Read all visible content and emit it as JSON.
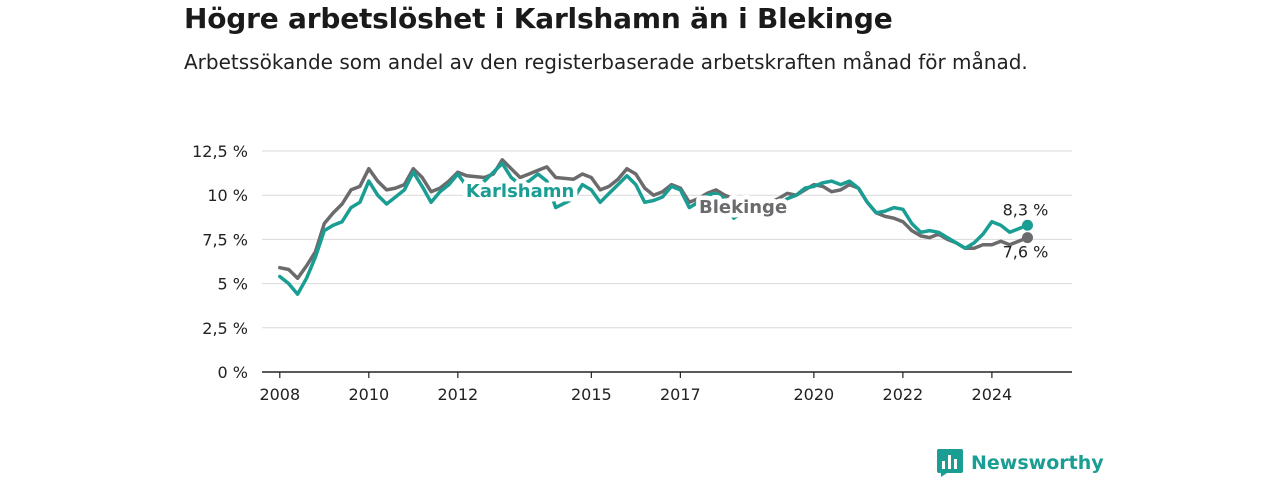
{
  "title": "Högre arbetslöshet i Karlshamn än i Blekinge",
  "subtitle": "Arbetssökande som andel av den registerbaserade arbetskraften månad för månad.",
  "brand": "Newsworthy",
  "colors": {
    "karlshamn": "#1a9e94",
    "blekinge": "#6b6b6e",
    "grid": "#d9d9d9",
    "axis": "#222222",
    "brand": "#1a9e94"
  },
  "chart_data": {
    "type": "line",
    "x_unit": "year",
    "xlim": [
      2007.6,
      2025.8
    ],
    "ylim": [
      0,
      12.5
    ],
    "y_ticks": [
      0,
      2.5,
      5,
      7.5,
      10,
      12.5
    ],
    "y_tick_labels": [
      "0 %",
      "2,5 %",
      "5 %",
      "7,5 %",
      "10 %",
      "12,5 %"
    ],
    "x_ticks": [
      2008,
      2010,
      2012,
      2015,
      2017,
      2020,
      2022,
      2024
    ],
    "x_tick_labels": [
      "2008",
      "2010",
      "2012",
      "2015",
      "2017",
      "2020",
      "2022",
      "2024"
    ],
    "grid": true,
    "series": [
      {
        "name": "Blekinge",
        "color": "#6b6b6e",
        "end_label": "7,6 %",
        "x": [
          2008.0,
          2008.2,
          2008.4,
          2008.6,
          2008.8,
          2009.0,
          2009.2,
          2009.4,
          2009.6,
          2009.8,
          2010.0,
          2010.2,
          2010.4,
          2010.6,
          2010.8,
          2011.0,
          2011.2,
          2011.4,
          2011.6,
          2011.8,
          2012.0,
          2012.2,
          2012.6,
          2012.8,
          2013.0,
          2013.2,
          2013.4,
          2013.6,
          2013.8,
          2014.0,
          2014.2,
          2014.6,
          2014.8,
          2015.0,
          2015.2,
          2015.4,
          2015.6,
          2015.8,
          2016.0,
          2016.2,
          2016.4,
          2016.6,
          2016.8,
          2017.0,
          2017.2,
          2017.4,
          2017.6,
          2017.8,
          2018.0,
          2018.2,
          2018.4,
          2019.0,
          2019.2,
          2019.4,
          2019.6,
          2019.8,
          2020.0,
          2020.2,
          2020.4,
          2020.6,
          2020.8,
          2021.0,
          2021.2,
          2021.4,
          2021.6,
          2021.8,
          2022.0,
          2022.2,
          2022.4,
          2022.6,
          2022.8,
          2023.0,
          2023.2,
          2023.4,
          2023.6,
          2023.8,
          2024.0,
          2024.2,
          2024.4,
          2024.6,
          2024.8
        ],
        "y": [
          5.9,
          5.8,
          5.3,
          6.0,
          6.8,
          8.4,
          9.0,
          9.5,
          10.3,
          10.5,
          11.5,
          10.8,
          10.3,
          10.4,
          10.6,
          11.5,
          11.0,
          10.2,
          10.4,
          10.8,
          11.3,
          11.1,
          11.0,
          11.2,
          12.0,
          11.5,
          11.0,
          11.2,
          11.4,
          11.6,
          11.0,
          10.9,
          11.2,
          11.0,
          10.3,
          10.5,
          10.9,
          11.5,
          11.2,
          10.4,
          10.0,
          10.2,
          10.6,
          10.4,
          9.6,
          9.8,
          10.1,
          10.3,
          10.0,
          9.8,
          9.5,
          9.6,
          9.8,
          10.1,
          10.0,
          10.3,
          10.6,
          10.5,
          10.2,
          10.3,
          10.6,
          10.4,
          9.6,
          9.0,
          8.8,
          8.7,
          8.5,
          8.0,
          7.7,
          7.6,
          7.8,
          7.5,
          7.3,
          7.0,
          7.0,
          7.2,
          7.2,
          7.4,
          7.2,
          7.4,
          7.6
        ]
      },
      {
        "name": "Karlshamn",
        "color": "#1a9e94",
        "end_label": "8,3 %",
        "x": [
          2008.0,
          2008.2,
          2008.4,
          2008.6,
          2008.8,
          2009.0,
          2009.2,
          2009.4,
          2009.6,
          2009.8,
          2010.0,
          2010.2,
          2010.4,
          2010.6,
          2010.8,
          2011.0,
          2011.2,
          2011.4,
          2011.6,
          2011.8,
          2012.0,
          2012.2,
          2012.6,
          2012.8,
          2013.0,
          2013.2,
          2013.4,
          2013.6,
          2013.8,
          2014.0,
          2014.2,
          2014.6,
          2014.8,
          2015.0,
          2015.2,
          2015.4,
          2015.6,
          2015.8,
          2016.0,
          2016.2,
          2016.4,
          2016.6,
          2016.8,
          2017.0,
          2017.2,
          2017.4,
          2017.6,
          2017.8,
          2018.0,
          2018.2,
          2018.4,
          2019.0,
          2019.2,
          2019.4,
          2019.6,
          2019.8,
          2020.0,
          2020.2,
          2020.4,
          2020.6,
          2020.8,
          2021.0,
          2021.2,
          2021.4,
          2021.6,
          2021.8,
          2022.0,
          2022.2,
          2022.4,
          2022.6,
          2022.8,
          2023.0,
          2023.2,
          2023.4,
          2023.6,
          2023.8,
          2024.0,
          2024.2,
          2024.4,
          2024.6,
          2024.8
        ],
        "y": [
          5.4,
          5.0,
          4.4,
          5.3,
          6.5,
          8.0,
          8.3,
          8.5,
          9.3,
          9.6,
          10.8,
          10.0,
          9.5,
          9.9,
          10.3,
          11.3,
          10.5,
          9.6,
          10.2,
          10.6,
          11.2,
          10.5,
          10.8,
          11.3,
          11.8,
          11.0,
          10.6,
          10.8,
          11.2,
          10.8,
          9.3,
          9.8,
          10.6,
          10.3,
          9.6,
          10.1,
          10.6,
          11.1,
          10.6,
          9.6,
          9.7,
          9.9,
          10.5,
          10.3,
          9.3,
          9.6,
          10.0,
          10.1,
          9.8,
          8.7,
          9.1,
          9.2,
          9.4,
          9.8,
          10.0,
          10.4,
          10.5,
          10.7,
          10.8,
          10.6,
          10.8,
          10.4,
          9.6,
          9.0,
          9.1,
          9.3,
          9.2,
          8.4,
          7.9,
          8.0,
          7.9,
          7.6,
          7.3,
          7.0,
          7.3,
          7.8,
          8.5,
          8.3,
          7.9,
          8.1,
          8.3
        ]
      }
    ]
  }
}
